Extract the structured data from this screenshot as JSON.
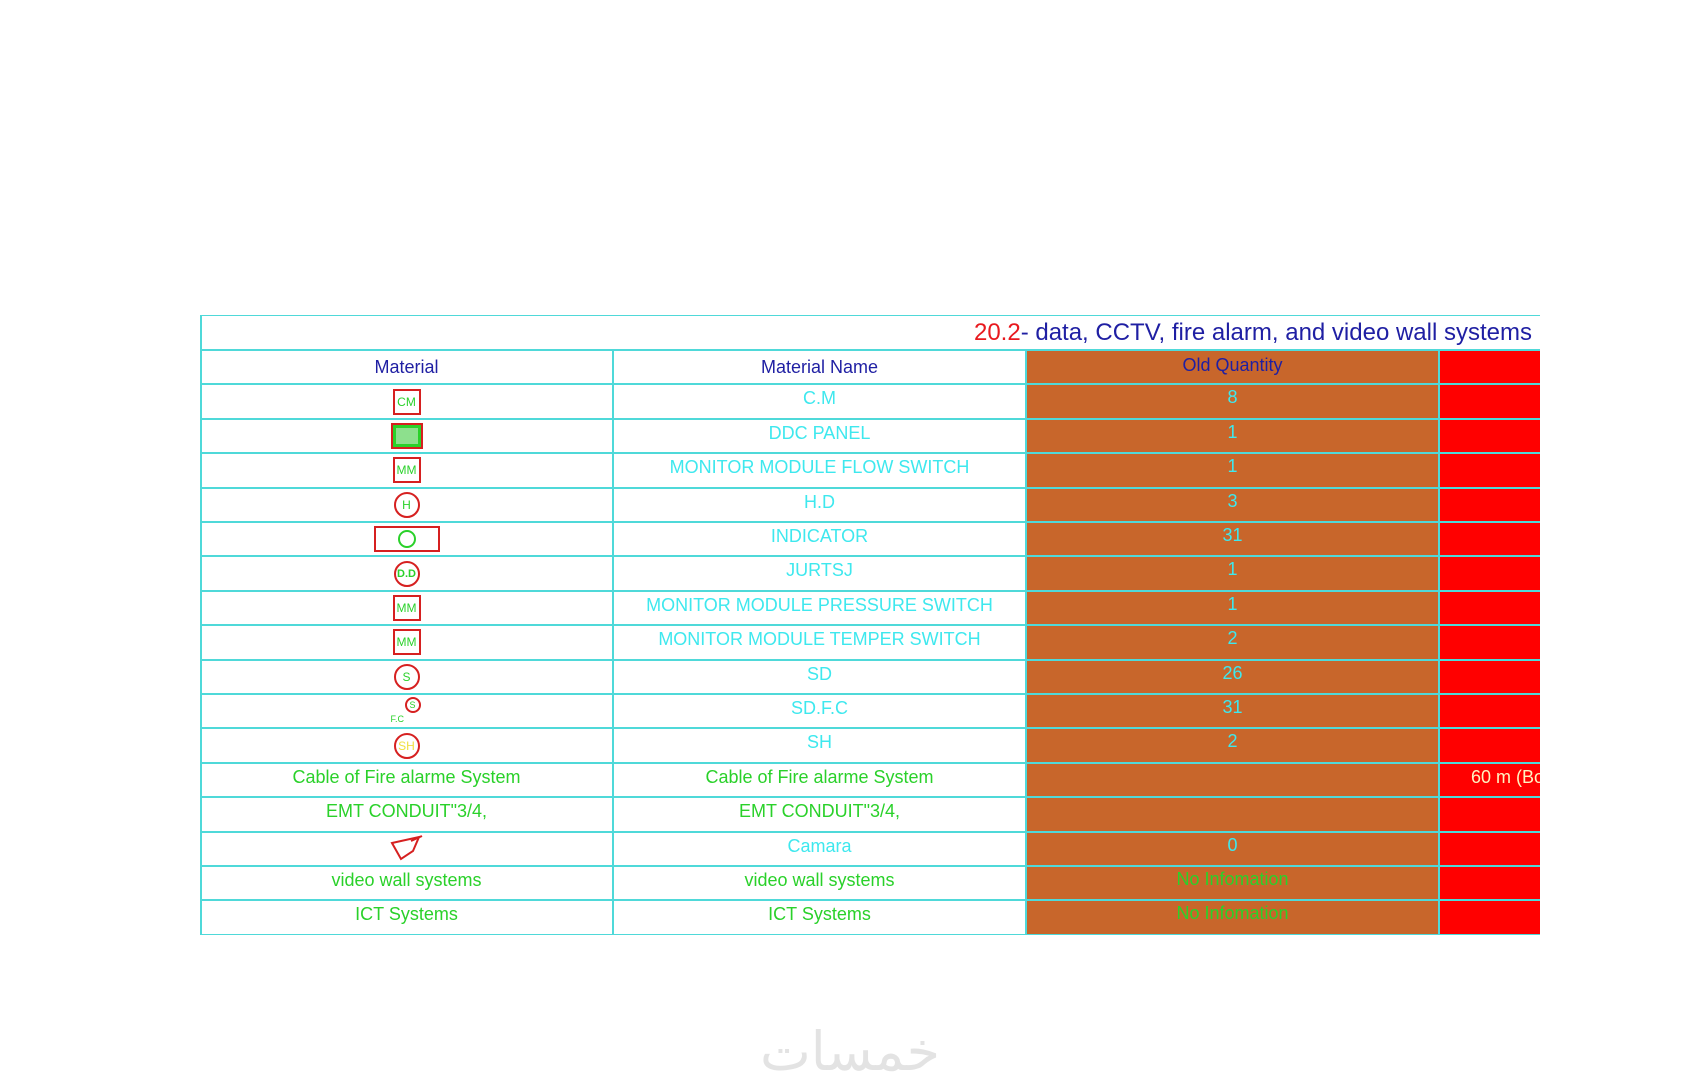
{
  "title": {
    "number": "20.2",
    "text": " - data, CCTV, fire alarm, and video wall systems"
  },
  "headers": {
    "material": "Material",
    "material_name": "Material Name",
    "old_quantity": "Old Quantity"
  },
  "colors": {
    "grid": "#4fd9d9",
    "quantity_col": "#c8662b",
    "red_col": "#ff0000",
    "cyan_text": "#3ee8ee",
    "green_text": "#2ad12a"
  },
  "rows": [
    {
      "material_symbol": "CM",
      "symbol_icon": "cm-box-icon",
      "name": "C.M",
      "qty": "8",
      "extra": "",
      "text_color": "cyan"
    },
    {
      "material_symbol": "",
      "symbol_icon": "ddc-panel-icon",
      "name": "DDC PANEL",
      "qty": "1",
      "extra": "",
      "text_color": "cyan"
    },
    {
      "material_symbol": "MM",
      "symbol_icon": "mm-box-icon",
      "name": "MONITOR MODULE FLOW SWITCH",
      "qty": "1",
      "extra": "",
      "text_color": "cyan"
    },
    {
      "material_symbol": "H",
      "symbol_icon": "h-circle-icon",
      "name": "H.D",
      "qty": "3",
      "extra": "",
      "text_color": "cyan"
    },
    {
      "material_symbol": "",
      "symbol_icon": "indicator-icon",
      "name": "INDICATOR",
      "qty": "31",
      "extra": "",
      "text_color": "cyan"
    },
    {
      "material_symbol": "D.D",
      "symbol_icon": "dd-circle-icon",
      "name": "JURTSJ",
      "qty": "1",
      "extra": "",
      "text_color": "cyan"
    },
    {
      "material_symbol": "MM",
      "symbol_icon": "mm-box-icon",
      "name": "MONITOR MODULE PRESSURE SWITCH",
      "qty": "1",
      "extra": "",
      "text_color": "cyan"
    },
    {
      "material_symbol": "MM",
      "symbol_icon": "mm-box-icon",
      "name": "MONITOR MODULE TEMPER SWITCH",
      "qty": "2",
      "extra": "",
      "text_color": "cyan"
    },
    {
      "material_symbol": "S",
      "symbol_icon": "s-circle-icon",
      "name": "SD",
      "qty": "26",
      "extra": "",
      "text_color": "cyan"
    },
    {
      "material_symbol": "S",
      "symbol_sub": "F.C",
      "symbol_icon": "sdfc-icon",
      "name": "SD.F.C",
      "qty": "31",
      "extra": "",
      "text_color": "cyan"
    },
    {
      "material_symbol": "SH",
      "symbol_icon": "sh-circle-icon",
      "name": "SH",
      "qty": "2",
      "extra": "",
      "text_color": "cyan"
    },
    {
      "material_symbol": "Cable of Fire alarme System",
      "symbol_icon": "",
      "name": "Cable of Fire alarme System",
      "qty": "",
      "extra": "60 m (Bo",
      "text_color": "green"
    },
    {
      "material_symbol": "EMT CONDUIT\"3/4,",
      "symbol_icon": "",
      "name": "EMT CONDUIT\"3/4,",
      "qty": "",
      "extra": "",
      "text_color": "green"
    },
    {
      "material_symbol": "",
      "symbol_icon": "camera-icon",
      "name": "Camara",
      "qty": "0",
      "extra": "",
      "text_color": "cyan"
    },
    {
      "material_symbol": "video wall systems",
      "symbol_icon": "",
      "name": "video wall systems",
      "qty": "No Infomation",
      "extra": "",
      "text_color": "green"
    },
    {
      "material_symbol": "ICT Systems",
      "symbol_icon": "",
      "name": "ICT Systems",
      "qty": "No Infomation",
      "extra": "",
      "text_color": "green"
    }
  ],
  "watermark": "خمسات"
}
